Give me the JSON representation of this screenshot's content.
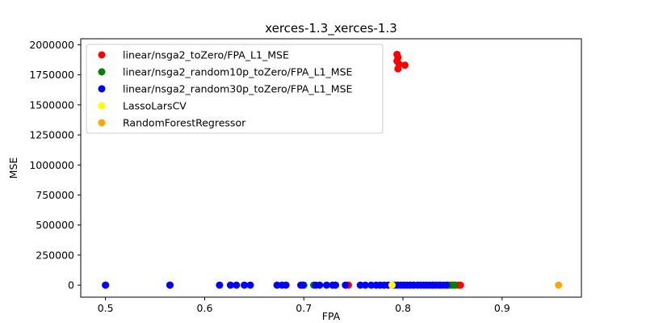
{
  "chart_data": {
    "type": "scatter",
    "title": "xerces-1.3_xerces-1.3",
    "xlabel": "FPA",
    "ylabel": "MSE",
    "xlim": [
      0.475,
      0.98
    ],
    "ylim": [
      -100000,
      2050000
    ],
    "xticks": [
      0.5,
      0.6,
      0.7,
      0.8,
      0.9
    ],
    "xtick_labels": [
      "0.5",
      "0.6",
      "0.7",
      "0.8",
      "0.9"
    ],
    "yticks": [
      0,
      250000,
      500000,
      750000,
      1000000,
      1250000,
      1500000,
      1750000,
      2000000
    ],
    "ytick_labels": [
      "0",
      "250000",
      "500000",
      "750000",
      "1000000",
      "1250000",
      "1500000",
      "1750000",
      "2000000"
    ],
    "grid": false,
    "legend_position": "top-left",
    "series": [
      {
        "name": "linear/nsga2_toZero/FPA_L1_MSE",
        "color": "#ff0000",
        "points": [
          [
            0.794,
            1920000
          ],
          [
            0.795,
            1895000
          ],
          [
            0.794,
            1865000
          ],
          [
            0.796,
            1840000
          ],
          [
            0.795,
            1800000
          ],
          [
            0.802,
            1830000
          ],
          [
            0.5,
            0
          ],
          [
            0.565,
            0
          ],
          [
            0.745,
            0
          ],
          [
            0.79,
            0
          ],
          [
            0.81,
            0
          ],
          [
            0.83,
            0
          ],
          [
            0.845,
            0
          ],
          [
            0.85,
            0
          ],
          [
            0.853,
            0
          ],
          [
            0.856,
            0
          ],
          [
            0.858,
            0
          ]
        ]
      },
      {
        "name": "linear/nsga2_random10p_toZero/FPA_L1_MSE",
        "color": "#008000",
        "points": [
          [
            0.7,
            0
          ],
          [
            0.71,
            0
          ],
          [
            0.847,
            0
          ],
          [
            0.849,
            0
          ],
          [
            0.852,
            0
          ]
        ]
      },
      {
        "name": "linear/nsga2_random30p_toZero/FPA_L1_MSE",
        "color": "#0000ff",
        "points": [
          [
            0.5,
            0
          ],
          [
            0.565,
            0
          ],
          [
            0.615,
            0
          ],
          [
            0.626,
            0
          ],
          [
            0.632,
            0
          ],
          [
            0.64,
            0
          ],
          [
            0.646,
            0
          ],
          [
            0.673,
            0
          ],
          [
            0.678,
            0
          ],
          [
            0.682,
            0
          ],
          [
            0.697,
            0
          ],
          [
            0.699,
            0
          ],
          [
            0.712,
            0
          ],
          [
            0.716,
            0
          ],
          [
            0.723,
            0
          ],
          [
            0.729,
            0
          ],
          [
            0.732,
            0
          ],
          [
            0.742,
            0
          ],
          [
            0.757,
            0
          ],
          [
            0.762,
            0
          ],
          [
            0.768,
            0
          ],
          [
            0.773,
            0
          ],
          [
            0.777,
            0
          ],
          [
            0.781,
            0
          ],
          [
            0.785,
            0
          ],
          [
            0.792,
            0
          ],
          [
            0.795,
            0
          ],
          [
            0.798,
            0
          ],
          [
            0.801,
            0
          ],
          [
            0.804,
            0
          ],
          [
            0.807,
            0
          ],
          [
            0.811,
            0
          ],
          [
            0.815,
            0
          ],
          [
            0.818,
            0
          ],
          [
            0.821,
            0
          ],
          [
            0.824,
            0
          ],
          [
            0.827,
            0
          ],
          [
            0.83,
            0
          ],
          [
            0.833,
            0
          ],
          [
            0.836,
            0
          ],
          [
            0.838,
            0
          ],
          [
            0.841,
            0
          ],
          [
            0.844,
            0
          ]
        ]
      },
      {
        "name": "LassoLarsCV",
        "color": "#ffff00",
        "points": [
          [
            0.789,
            0
          ]
        ]
      },
      {
        "name": "RandomForestRegressor",
        "color": "#ffa500",
        "points": [
          [
            0.957,
            0
          ]
        ]
      }
    ]
  }
}
